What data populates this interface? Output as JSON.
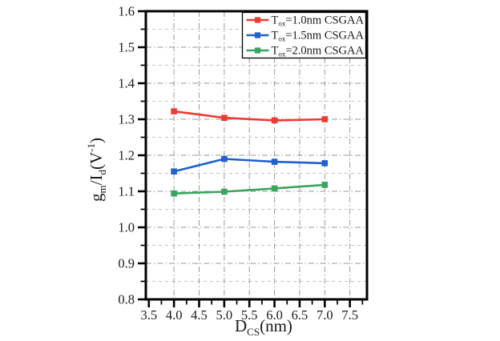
{
  "figure": {
    "background": "#ffffff",
    "description": "Line chart of transconductance efficiency versus channel diameter for CSGAA devices"
  },
  "chart_data": {
    "type": "line",
    "title": "",
    "xlabel": "D_CS(nm)",
    "ylabel": "g_m/I_d(V^-1)",
    "xlabel_parts": [
      {
        "t": "D"
      },
      {
        "t": "CS",
        "sub": true
      },
      {
        "t": "(nm)"
      }
    ],
    "ylabel_parts": [
      {
        "t": "g"
      },
      {
        "t": "m",
        "sub": true
      },
      {
        "t": "/I"
      },
      {
        "t": "d",
        "sub": true
      },
      {
        "t": "(V"
      },
      {
        "t": "-1",
        "sup": true
      },
      {
        "t": ")"
      }
    ],
    "x": [
      4.0,
      5.0,
      6.0,
      7.0
    ],
    "series": [
      {
        "name": "T_ox=1.0nm CSGAA",
        "name_parts": [
          {
            "t": "T"
          },
          {
            "t": "ox",
            "sub": true
          },
          {
            "t": "=1.0nm CSGAA"
          }
        ],
        "color": "#ED3A33",
        "marker": "square",
        "values": [
          1.322,
          1.304,
          1.297,
          1.3
        ]
      },
      {
        "name": "T_ox=1.5nm CSGAA",
        "name_parts": [
          {
            "t": "T"
          },
          {
            "t": "ox",
            "sub": true
          },
          {
            "t": "=1.5nm CSGAA"
          }
        ],
        "color": "#2161CB",
        "marker": "square",
        "values": [
          1.155,
          1.19,
          1.182,
          1.178
        ]
      },
      {
        "name": "T_ox=2.0nm CSGAA",
        "name_parts": [
          {
            "t": "T"
          },
          {
            "t": "ox",
            "sub": true
          },
          {
            "t": "=2.0nm CSGAA"
          }
        ],
        "color": "#3AA45E",
        "marker": "square",
        "values": [
          1.094,
          1.099,
          1.108,
          1.118
        ]
      }
    ],
    "xlim": [
      3.44,
      7.84
    ],
    "ylim": [
      0.8,
      1.6
    ],
    "x_major_ticks": [
      3.5,
      4.0,
      4.5,
      5.0,
      5.5,
      6.0,
      6.5,
      7.0,
      7.5
    ],
    "x_tick_labels": [
      "3.5",
      "4.0",
      "4.5",
      "5.0",
      "5.5",
      "6.0",
      "6.5",
      "7.0",
      "7.5"
    ],
    "x_minor_step": 0.25,
    "y_major_ticks": [
      0.8,
      0.9,
      1.0,
      1.1,
      1.2,
      1.3,
      1.4,
      1.5,
      1.6
    ],
    "y_tick_labels": [
      "0.8",
      "0.9",
      "1.0",
      "1.1",
      "1.2",
      "1.3",
      "1.4",
      "1.5",
      "1.6"
    ],
    "y_minor_step": 0.05,
    "grid": {
      "vertical": "major",
      "horizontal": "major+minor",
      "on": true
    },
    "legend": {
      "position": "top-right",
      "border": true
    }
  },
  "style": {
    "axis_color": "#000000",
    "major_grid_color": "#9a9a9a",
    "minor_grid_color": "#c2c2c2",
    "tick_label_color": "#1a1a1a",
    "legend_bg": "#ffffff",
    "legend_border": "#000000"
  }
}
